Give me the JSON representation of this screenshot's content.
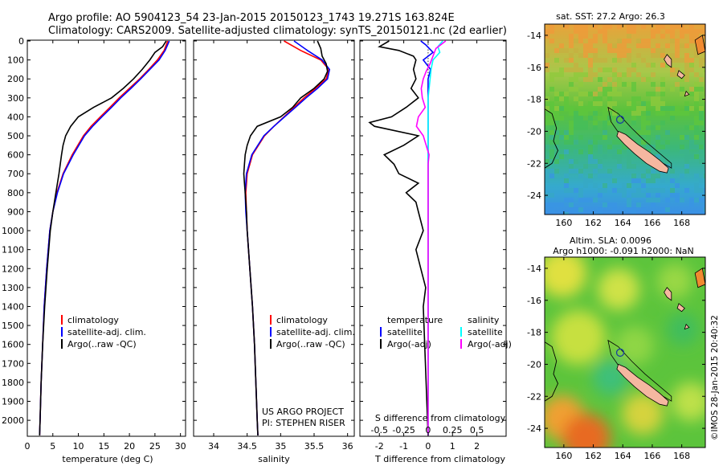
{
  "header": {
    "title_line1": "Argo profile: AO 5904123_54 23-Jan-2015 20150123_1743 19.271S 163.824E",
    "title_line2": "Climatology: CARS2009. Satellite-adjusted climatology: synTS_20150121.nc (2d earlier)"
  },
  "credit": {
    "project": "US ARGO PROJECT",
    "pi": "PI: STEPHEN RISER",
    "stamp": "©IMOS 28-Jan-2015 20:40:32"
  },
  "colors": {
    "climatology": "#ff0000",
    "satellite": "#0000ff",
    "argo": "#000000",
    "sal_satellite": "#00ffff",
    "sal_argo": "#ff00ff",
    "land": "#f5b7a0",
    "argo_marker": "#1a3fa0"
  },
  "chart_data": [
    {
      "type": "line",
      "name": "temperature-profile",
      "xlabel": "temperature (deg C)",
      "ylabel": "",
      "xlim": [
        0,
        31
      ],
      "ylim": [
        2080,
        0
      ],
      "x_ticks": [
        0,
        5,
        10,
        15,
        20,
        25,
        30
      ],
      "y_ticks": [
        0,
        100,
        200,
        300,
        400,
        500,
        600,
        700,
        800,
        900,
        1000,
        1100,
        1200,
        1300,
        1400,
        1500,
        1600,
        1700,
        1800,
        1900,
        2000
      ],
      "legend": [
        "climatology",
        "satellite-adj. clim.",
        "Argo(..raw -QC)"
      ],
      "series": [
        {
          "name": "climatology",
          "color": "#ff0000",
          "depth": [
            0,
            50,
            100,
            150,
            200,
            250,
            300,
            350,
            400,
            450,
            500,
            600,
            700,
            800,
            900,
            1000,
            1200,
            1400,
            1600,
            1800,
            2000,
            2080
          ],
          "values": [
            27.5,
            26.8,
            25.5,
            23.8,
            22.0,
            20.0,
            18.0,
            16.2,
            14.3,
            12.5,
            11.0,
            8.8,
            7.0,
            5.8,
            5.0,
            4.4,
            3.8,
            3.3,
            3.0,
            2.7,
            2.5,
            2.4
          ]
        },
        {
          "name": "satellite-adj. clim.",
          "color": "#0000ff",
          "depth": [
            0,
            50,
            100,
            150,
            200,
            250,
            300,
            350,
            400,
            450,
            500,
            600,
            700,
            800,
            900,
            1000,
            1200,
            1400,
            1600,
            1800,
            2000,
            2080
          ],
          "values": [
            27.8,
            27.0,
            25.8,
            24.0,
            22.2,
            20.3,
            18.3,
            16.5,
            14.6,
            12.8,
            11.2,
            9.0,
            7.1,
            5.9,
            5.0,
            4.4,
            3.8,
            3.3,
            3.0,
            2.7,
            2.5,
            2.4
          ]
        },
        {
          "name": "Argo(..raw -QC)",
          "color": "#000000",
          "depth": [
            0,
            30,
            60,
            100,
            150,
            200,
            250,
            300,
            350,
            400,
            450,
            500,
            550,
            600,
            700,
            800,
            900,
            1000,
            1200,
            1400,
            1600,
            1800,
            2000,
            2080
          ],
          "values": [
            27.2,
            26.5,
            25.0,
            24.0,
            22.5,
            20.8,
            18.8,
            16.5,
            13.0,
            10.0,
            8.5,
            7.5,
            7.0,
            6.7,
            6.2,
            5.6,
            5.0,
            4.5,
            3.9,
            3.4,
            3.0,
            2.7,
            2.5,
            2.4
          ]
        }
      ]
    },
    {
      "type": "line",
      "name": "salinity-profile",
      "xlabel": "salinity",
      "ylabel": "",
      "xlim": [
        33.7,
        36.1
      ],
      "ylim": [
        2080,
        0
      ],
      "x_ticks": [
        34,
        34.5,
        35,
        35.5,
        36
      ],
      "legend": [
        "climatology",
        "satellite-adj. clim.",
        "Argo(..raw -QC)"
      ],
      "series": [
        {
          "name": "climatology",
          "color": "#ff0000",
          "depth": [
            0,
            50,
            100,
            150,
            200,
            250,
            300,
            350,
            400,
            450,
            500,
            600,
            700,
            800,
            900,
            1000,
            1200,
            1400,
            1600,
            1800,
            2000,
            2080
          ],
          "values": [
            35.05,
            35.3,
            35.6,
            35.72,
            35.68,
            35.52,
            35.35,
            35.2,
            35.05,
            34.9,
            34.76,
            34.58,
            34.5,
            34.48,
            34.49,
            34.5,
            34.54,
            34.58,
            34.61,
            34.63,
            34.65,
            34.66
          ]
        },
        {
          "name": "satellite-adj. clim.",
          "color": "#0000ff",
          "depth": [
            0,
            50,
            100,
            150,
            200,
            250,
            300,
            350,
            400,
            450,
            500,
            600,
            700,
            800,
            900,
            1000,
            1200,
            1400,
            1600,
            1800,
            2000,
            2080
          ],
          "values": [
            35.2,
            35.4,
            35.62,
            35.73,
            35.7,
            35.55,
            35.38,
            35.22,
            35.06,
            34.9,
            34.75,
            34.57,
            34.49,
            34.47,
            34.48,
            34.5,
            34.54,
            34.58,
            34.61,
            34.63,
            34.65,
            34.66
          ]
        },
        {
          "name": "Argo(..raw -QC)",
          "color": "#000000",
          "depth": [
            0,
            40,
            80,
            120,
            160,
            200,
            250,
            300,
            350,
            400,
            450,
            500,
            550,
            600,
            650,
            700,
            750,
            800,
            900,
            1000,
            1200,
            1400,
            1600,
            1800,
            2000,
            2080
          ],
          "values": [
            35.55,
            35.6,
            35.62,
            35.68,
            35.7,
            35.65,
            35.5,
            35.3,
            35.18,
            35.0,
            34.65,
            34.55,
            34.5,
            34.47,
            34.46,
            34.45,
            34.46,
            34.47,
            34.49,
            34.5,
            34.54,
            34.58,
            34.61,
            34.63,
            34.65,
            34.66
          ]
        }
      ],
      "annotations": [
        "US ARGO PROJECT",
        "PI: STEPHEN RISER"
      ]
    },
    {
      "type": "line",
      "name": "difference-profile",
      "xlabel": "T difference from climatology",
      "x2label": "S difference from climatology",
      "xlim": [
        -2.8,
        3.2
      ],
      "x2lim": [
        -0.7,
        0.8
      ],
      "ylim": [
        2080,
        0
      ],
      "x_ticks": [
        -2,
        -1,
        0,
        1,
        2
      ],
      "x2_ticks": [
        "-0.5",
        "-0.25",
        "0",
        "0.25",
        "0.5"
      ],
      "x2_tick_values": [
        -0.5,
        -0.25,
        0,
        0.25,
        0.5
      ],
      "legend_temperature_title": "temperature",
      "legend_salinity_title": "salinity",
      "legend": [
        "satellite",
        "Argo(-adj)",
        "satellite",
        "Argo(-adj)"
      ],
      "series": [
        {
          "name": "satellite",
          "group": "temperature",
          "color": "#0000ff",
          "depth": [
            0,
            20,
            60,
            100,
            150,
            200,
            300,
            400,
            500,
            700,
            900,
            1000,
            1200,
            1400,
            2080
          ],
          "values": [
            -0.3,
            -0.1,
            0.2,
            -0.2,
            0.1,
            0.0,
            0.0,
            0.0,
            0.0,
            0.0,
            0.0,
            0.0,
            0.0,
            0.0,
            0.0
          ]
        },
        {
          "name": "Argo(-adj)",
          "group": "temperature",
          "color": "#000000",
          "depth": [
            0,
            30,
            50,
            80,
            100,
            150,
            200,
            250,
            300,
            350,
            400,
            430,
            450,
            500,
            550,
            600,
            650,
            700,
            750,
            800,
            850,
            900,
            1000,
            1100,
            1200,
            1300,
            1400,
            2080
          ],
          "values": [
            -1.6,
            -2.0,
            -1.2,
            -0.6,
            -0.5,
            -0.6,
            -0.5,
            -0.7,
            -0.4,
            -0.9,
            -1.5,
            -2.4,
            -2.2,
            -0.4,
            -1.0,
            -1.8,
            -1.4,
            -1.2,
            -0.4,
            -0.9,
            -0.5,
            -0.4,
            -0.2,
            -0.5,
            -0.3,
            -0.1,
            -0.2,
            0.0
          ]
        },
        {
          "name": "satellite",
          "group": "salinity",
          "color": "#00ffff",
          "depth": [
            0,
            30,
            60,
            100,
            150,
            200,
            300,
            400,
            500,
            700,
            1000,
            1400,
            2080
          ],
          "values": [
            0.15,
            0.1,
            0.12,
            0.05,
            0.03,
            0.02,
            0.0,
            0.0,
            0.0,
            0.0,
            0.0,
            0.0,
            0.0
          ]
        },
        {
          "name": "Argo(-adj)",
          "group": "salinity",
          "color": "#ff00ff",
          "depth": [
            0,
            40,
            80,
            120,
            160,
            200,
            250,
            300,
            350,
            400,
            450,
            500,
            550,
            600,
            650,
            700,
            800,
            900,
            1000,
            1200,
            1400,
            2080
          ],
          "values": [
            0.18,
            0.08,
            0.05,
            0.02,
            -0.02,
            -0.05,
            -0.07,
            -0.06,
            -0.03,
            -0.1,
            -0.12,
            -0.05,
            -0.02,
            0.01,
            0.0,
            0.0,
            0.0,
            0.0,
            0.0,
            0.0,
            0.0,
            0.0
          ]
        }
      ]
    },
    {
      "type": "heatmap",
      "name": "sst-map",
      "title": "sat. SST: 27.2  Argo: 26.3",
      "x_ticks": [
        160,
        162,
        164,
        166,
        168
      ],
      "y_ticks": [
        -14,
        -16,
        -18,
        -20,
        -22,
        -24
      ],
      "xlim": [
        158.7,
        169.6
      ],
      "ylim": [
        -25.2,
        -13.3
      ],
      "argo_position": [
        163.824,
        -19.271
      ]
    },
    {
      "type": "heatmap",
      "name": "sla-map",
      "title_line1": "Altim. SLA: 0.0096",
      "title_line2": "Argo h1000: -0.091 h2000: NaN",
      "x_ticks": [
        160,
        162,
        164,
        166,
        168
      ],
      "y_ticks": [
        -14,
        -16,
        -18,
        -20,
        -22,
        -24
      ],
      "xlim": [
        158.7,
        169.6
      ],
      "ylim": [
        -25.2,
        -13.3
      ],
      "argo_position": [
        163.824,
        -19.271
      ]
    }
  ]
}
